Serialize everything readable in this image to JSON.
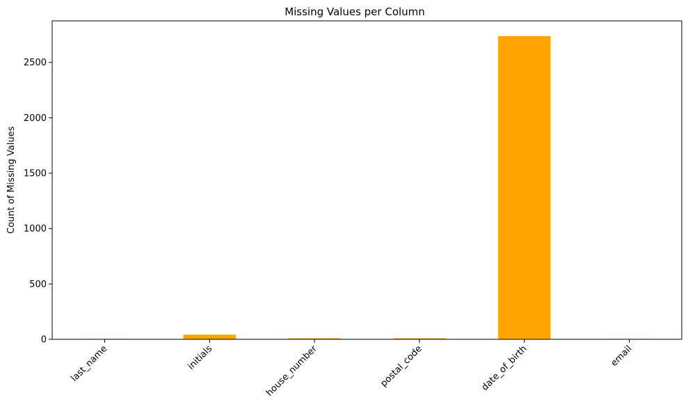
{
  "chart_data": {
    "type": "bar",
    "title": "Missing Values per Column",
    "xlabel": "",
    "ylabel": "Count of Missing Values",
    "categories": [
      "last_name",
      "initials",
      "house_number",
      "postal_code",
      "date_of_birth",
      "email"
    ],
    "values": [
      4,
      42,
      9,
      9,
      2737,
      4
    ],
    "ylim": [
      0,
      2875
    ],
    "yticks": [
      0,
      500,
      1000,
      1500,
      2000,
      2500
    ],
    "bar_color": "#ffa500",
    "grid": false,
    "legend": "none"
  }
}
